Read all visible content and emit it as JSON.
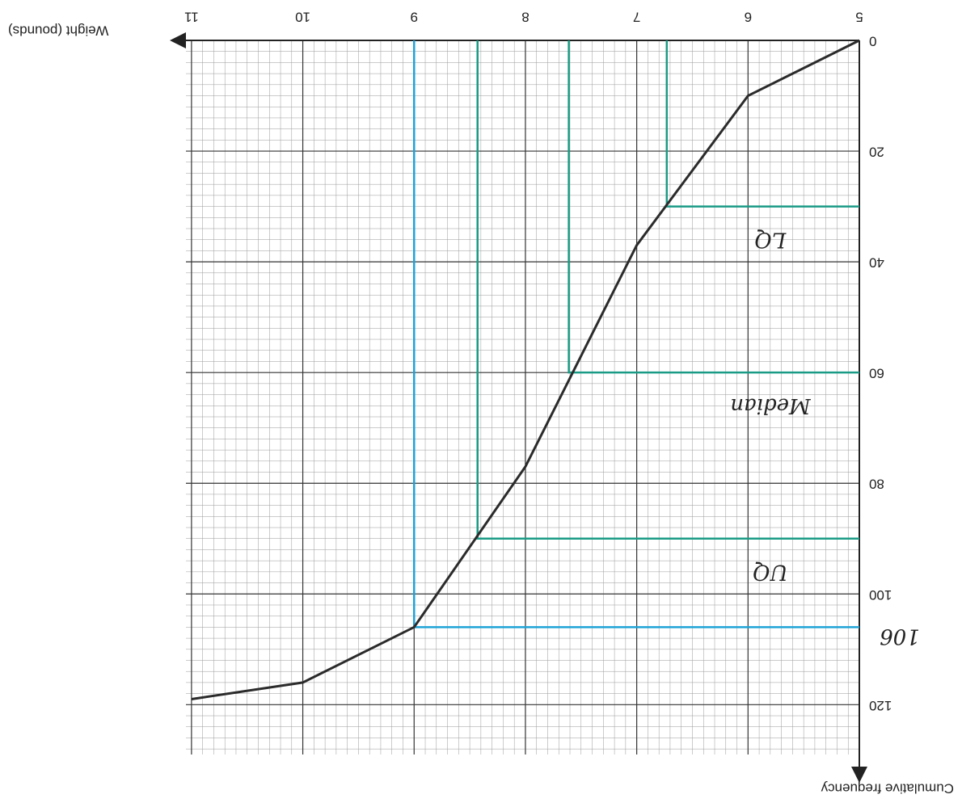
{
  "chart_data": {
    "type": "line",
    "x_label": "Weight (pounds)",
    "y_label": "Cumulative frequency",
    "x": [
      5,
      6,
      7,
      8,
      9,
      10,
      11
    ],
    "values": [
      0,
      10,
      37,
      77,
      106,
      116,
      119
    ],
    "color": "#2b2b2b",
    "xlim": [
      5,
      11.05
    ],
    "ylim": [
      0,
      129
    ],
    "xticks": [
      5,
      6,
      7,
      8,
      9,
      10,
      11
    ],
    "yticks": [
      0,
      20,
      40,
      60,
      80,
      100,
      120
    ],
    "grid": true,
    "annotations": [
      {
        "label": "LQ",
        "y": 30,
        "x": 6.73,
        "color": "#1a9b86"
      },
      {
        "label": "Median",
        "y": 60,
        "x": 7.61,
        "color": "#1a9b86"
      },
      {
        "label": "UQ",
        "y": 90,
        "x": 8.43,
        "color": "#1a9b86"
      },
      {
        "y": 106,
        "x": 9.0,
        "color": "#1ea3d8"
      }
    ]
  }
}
